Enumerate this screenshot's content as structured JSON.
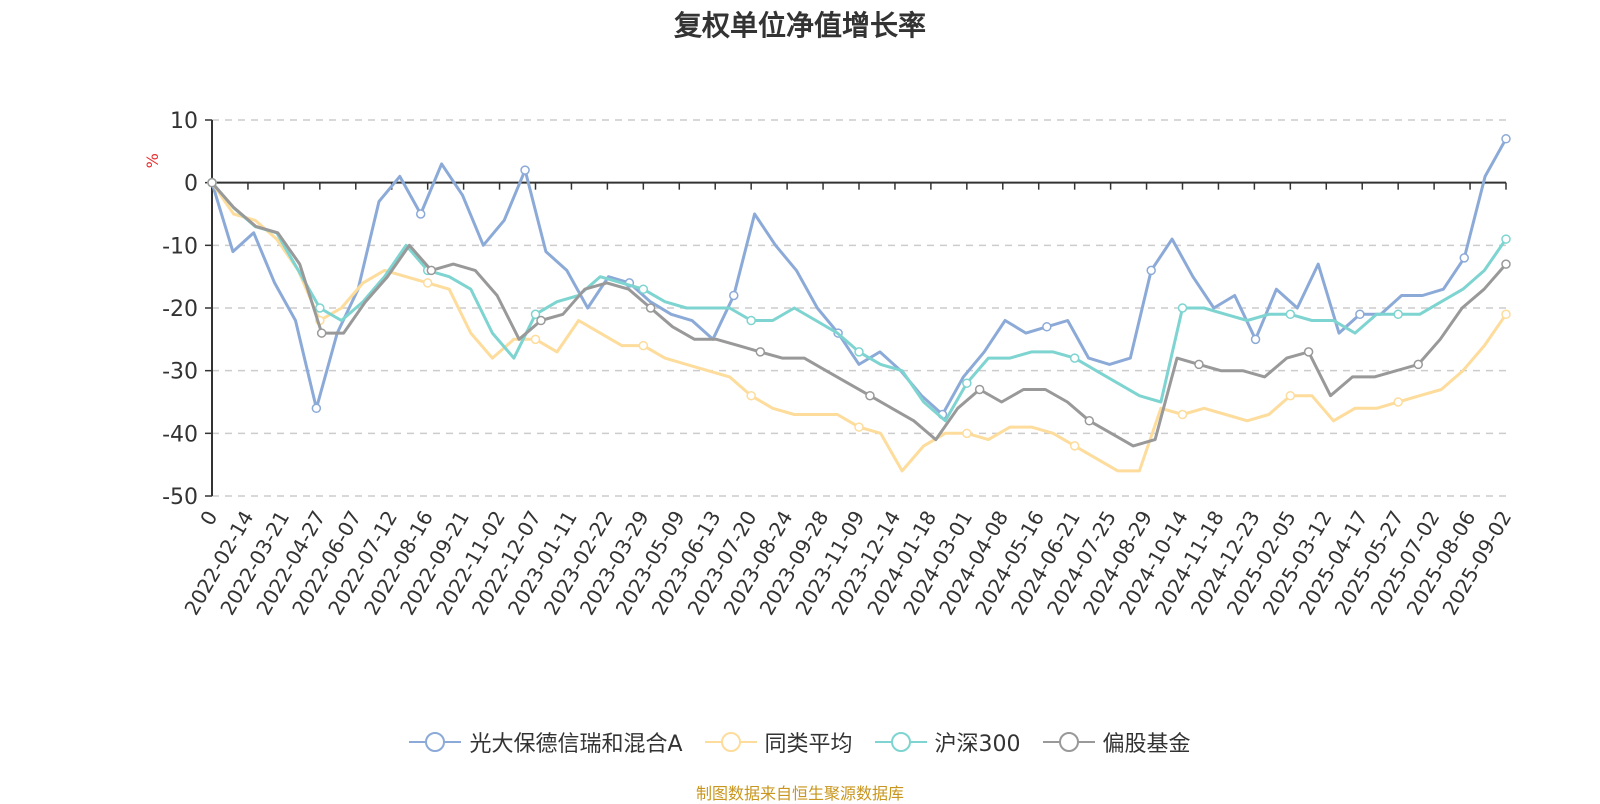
{
  "title": "复权单位净值增长率",
  "source": "制图数据来自恒生聚源数据库",
  "chart_data": {
    "type": "line",
    "title": "复权单位净值增长率",
    "ylabel": "%",
    "ylim": [
      -50,
      10
    ],
    "yticks": [
      10,
      0,
      -10,
      -20,
      -30,
      -40,
      -50
    ],
    "grid": true,
    "legend_position": "bottom",
    "xtick_labels": [
      "0",
      "2022-02-14",
      "2022-03-21",
      "2022-04-27",
      "2022-06-07",
      "2022-07-12",
      "2022-08-16",
      "2022-09-21",
      "2022-11-02",
      "2022-12-07",
      "2023-01-11",
      "2023-02-22",
      "2023-03-29",
      "2023-05-09",
      "2023-06-13",
      "2023-07-20",
      "2023-08-24",
      "2023-09-28",
      "2023-11-09",
      "2023-12-14",
      "2024-01-18",
      "2024-03-01",
      "2024-04-08",
      "2024-05-16",
      "2024-06-21",
      "2024-07-25",
      "2024-08-29",
      "2024-10-14",
      "2024-11-18",
      "2024-12-23",
      "2025-02-05",
      "2025-03-12",
      "2025-04-17",
      "2025-05-27",
      "2025-07-02",
      "2025-08-06",
      "2025-09-02"
    ],
    "series": [
      {
        "name": "光大保德信瑞和混合A",
        "color": "#8caad8",
        "values": [
          0,
          -11,
          -8,
          -16,
          -22,
          -36,
          -24,
          -17,
          -3,
          1,
          -5,
          3,
          -2,
          -10,
          -6,
          2,
          -11,
          -14,
          -20,
          -15,
          -16,
          -19,
          -21,
          -22,
          -25,
          -18,
          -5,
          -10,
          -14,
          -20,
          -24,
          -29,
          -27,
          -30,
          -34,
          -37,
          -31,
          -27,
          -22,
          -24,
          -23,
          -22,
          -28,
          -29,
          -28,
          -14,
          -9,
          -15,
          -20,
          -18,
          -25,
          -17,
          -20,
          -13,
          -24,
          -21,
          -21,
          -18,
          -18,
          -17,
          -12,
          1,
          7
        ]
      },
      {
        "name": "同类平均",
        "color": "#fddc9c",
        "values": [
          0,
          -5,
          -6,
          -9,
          -14,
          -22,
          -20,
          -16,
          -14,
          -15,
          -16,
          -17,
          -24,
          -28,
          -25,
          -25,
          -27,
          -22,
          -24,
          -26,
          -26,
          -28,
          -29,
          -30,
          -31,
          -34,
          -36,
          -37,
          -37,
          -37,
          -39,
          -40,
          -46,
          -42,
          -40,
          -40,
          -41,
          -39,
          -39,
          -40,
          -42,
          -44,
          -46,
          -46,
          -36,
          -37,
          -36,
          -37,
          -38,
          -37,
          -34,
          -34,
          -38,
          -36,
          -36,
          -35,
          -34,
          -33,
          -30,
          -26,
          -21
        ]
      },
      {
        "name": "沪深300",
        "color": "#7ed4d0",
        "values": [
          0,
          -4,
          -7,
          -8,
          -14,
          -20,
          -22,
          -19,
          -15,
          -10,
          -14,
          -15,
          -17,
          -24,
          -28,
          -21,
          -19,
          -18,
          -15,
          -16,
          -17,
          -19,
          -20,
          -20,
          -20,
          -22,
          -22,
          -20,
          -22,
          -24,
          -27,
          -29,
          -30,
          -35,
          -38,
          -32,
          -28,
          -28,
          -27,
          -27,
          -28,
          -30,
          -32,
          -34,
          -35,
          -20,
          -20,
          -21,
          -22,
          -21,
          -21,
          -22,
          -22,
          -24,
          -21,
          -21,
          -21,
          -19,
          -17,
          -14,
          -9
        ]
      },
      {
        "name": "偏股基金",
        "color": "#999999",
        "values": [
          0,
          -4,
          -7,
          -8,
          -13,
          -24,
          -24,
          -19,
          -15,
          -10,
          -14,
          -13,
          -14,
          -18,
          -25,
          -22,
          -21,
          -17,
          -16,
          -17,
          -20,
          -23,
          -25,
          -25,
          -26,
          -27,
          -28,
          -28,
          -30,
          -32,
          -34,
          -36,
          -38,
          -41,
          -36,
          -33,
          -35,
          -33,
          -33,
          -35,
          -38,
          -40,
          -42,
          -41,
          -28,
          -29,
          -30,
          -30,
          -31,
          -28,
          -27,
          -34,
          -31,
          -31,
          -30,
          -29,
          -25,
          -20,
          -17,
          -13
        ]
      }
    ]
  },
  "legend": [
    {
      "label": "光大保德信瑞和混合A",
      "color": "#8caad8"
    },
    {
      "label": "同类平均",
      "color": "#fddc9c"
    },
    {
      "label": "沪深300",
      "color": "#7ed4d0"
    },
    {
      "label": "偏股基金",
      "color": "#999999"
    }
  ]
}
